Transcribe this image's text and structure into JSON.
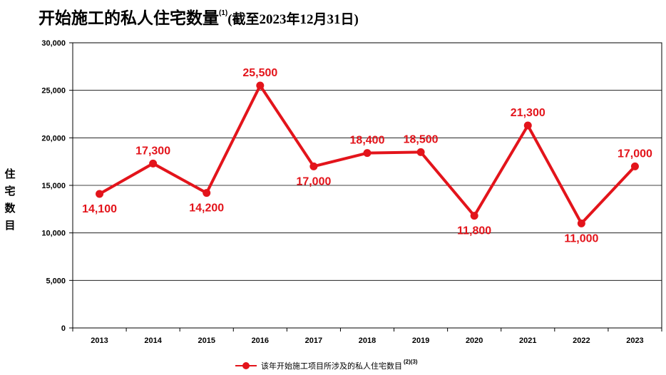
{
  "title": {
    "main": "开始施工的私人住宅数量",
    "sup": "(1)",
    "sub": "(截至2023年12月31日)"
  },
  "legend": {
    "label": "该年开始施工项目所涉及的私人住宅数目",
    "sup": "(2)(3)"
  },
  "colors": {
    "series": "#e3141b",
    "grid": "#000000"
  },
  "chart_data": {
    "type": "line",
    "title": "开始施工的私人住宅数量(1) (截至2023年12月31日)",
    "ylabel": "住宅数目",
    "xlabel": "",
    "ylim": [
      0,
      30000
    ],
    "yticks": [
      0,
      5000,
      10000,
      15000,
      20000,
      25000,
      30000
    ],
    "ytick_labels": [
      "0",
      "5,000",
      "10,000",
      "15,000",
      "20,000",
      "25,000",
      "30,000"
    ],
    "grid": true,
    "legend_position": "bottom-center",
    "categories": [
      "2013",
      "2014",
      "2015",
      "2016",
      "2017",
      "2018",
      "2019",
      "2020",
      "2021",
      "2022",
      "2023"
    ],
    "series": [
      {
        "name": "该年开始施工项目所涉及的私人住宅数目(2)(3)",
        "values": [
          14100,
          17300,
          14200,
          25500,
          17000,
          18400,
          18500,
          11800,
          21300,
          11000,
          17000
        ],
        "labels": [
          "14,100",
          "17,300",
          "14,200",
          "25,500",
          "17,000",
          "18,400",
          "18,500",
          "11,800",
          "21,300",
          "11,000",
          "17,000"
        ]
      }
    ]
  }
}
